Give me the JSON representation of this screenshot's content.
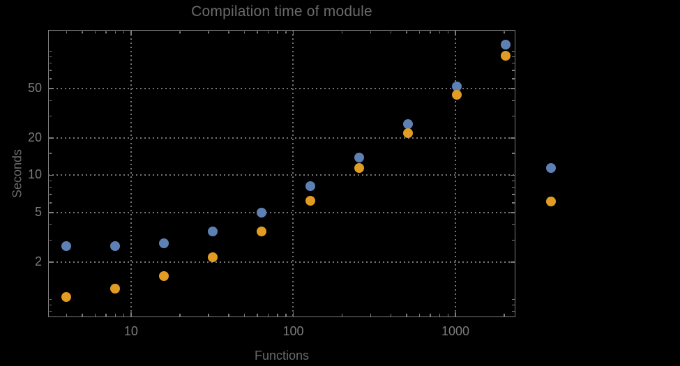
{
  "page": {
    "background_color": "#000000",
    "kind": "plot-image"
  },
  "chart_data": {
    "type": "scatter",
    "title": "Compilation time of module",
    "xlabel": "Functions",
    "ylabel": "Seconds",
    "xscale": "log",
    "yscale": "log",
    "xlim": [
      3.08,
      2343
    ],
    "ylim": [
      0.719,
      148.3
    ],
    "grid": true,
    "legend_position": "right-outside",
    "colors": {
      "frame": "#7d7d7d",
      "grid": "#767676",
      "tick_label": "#7c7c7c",
      "title": "#6a6a6a",
      "axis_label": "#6a6a6a",
      "series_blue": "#5E81B5",
      "series_orange": "#E19C24"
    },
    "x_ticks": {
      "major": [
        {
          "value": 10,
          "label": "10"
        },
        {
          "value": 100,
          "label": "100"
        },
        {
          "value": 1000,
          "label": "1000"
        }
      ],
      "minor": [
        4,
        5,
        6,
        7,
        8,
        9,
        20,
        30,
        40,
        50,
        60,
        70,
        80,
        90,
        200,
        300,
        400,
        500,
        600,
        700,
        800,
        900,
        2000
      ]
    },
    "y_ticks": {
      "major": [
        {
          "value": 2,
          "label": "2"
        },
        {
          "value": 5,
          "label": "5"
        },
        {
          "value": 10,
          "label": "10"
        },
        {
          "value": 20,
          "label": "20"
        },
        {
          "value": 50,
          "label": "50"
        }
      ],
      "minor": [
        0.8,
        0.9,
        1,
        3,
        4,
        6,
        7,
        8,
        9,
        15,
        30,
        40,
        60,
        70,
        80,
        90,
        100
      ]
    },
    "series": [
      {
        "name": "series-blue",
        "color": "#5E81B5",
        "marker": "circle",
        "points": [
          [
            4,
            2.7
          ],
          [
            8,
            2.7
          ],
          [
            16,
            2.85
          ],
          [
            32,
            3.53
          ],
          [
            64,
            5.0
          ],
          [
            128,
            8.2
          ],
          [
            256,
            13.9
          ],
          [
            512,
            26
          ],
          [
            1024,
            52
          ],
          [
            2048,
            113
          ]
        ]
      },
      {
        "name": "series-orange",
        "color": "#E19C24",
        "marker": "circle",
        "points": [
          [
            4,
            1.05
          ],
          [
            8,
            1.22
          ],
          [
            16,
            1.54
          ],
          [
            32,
            2.2
          ],
          [
            64,
            3.55
          ],
          [
            128,
            6.2
          ],
          [
            256,
            11.5
          ],
          [
            512,
            22
          ],
          [
            1024,
            44.5
          ],
          [
            2048,
            92
          ]
        ]
      }
    ],
    "legend": {
      "items": [
        {
          "color": "#5E81B5",
          "label": ""
        },
        {
          "color": "#E19C24",
          "label": ""
        }
      ]
    }
  }
}
